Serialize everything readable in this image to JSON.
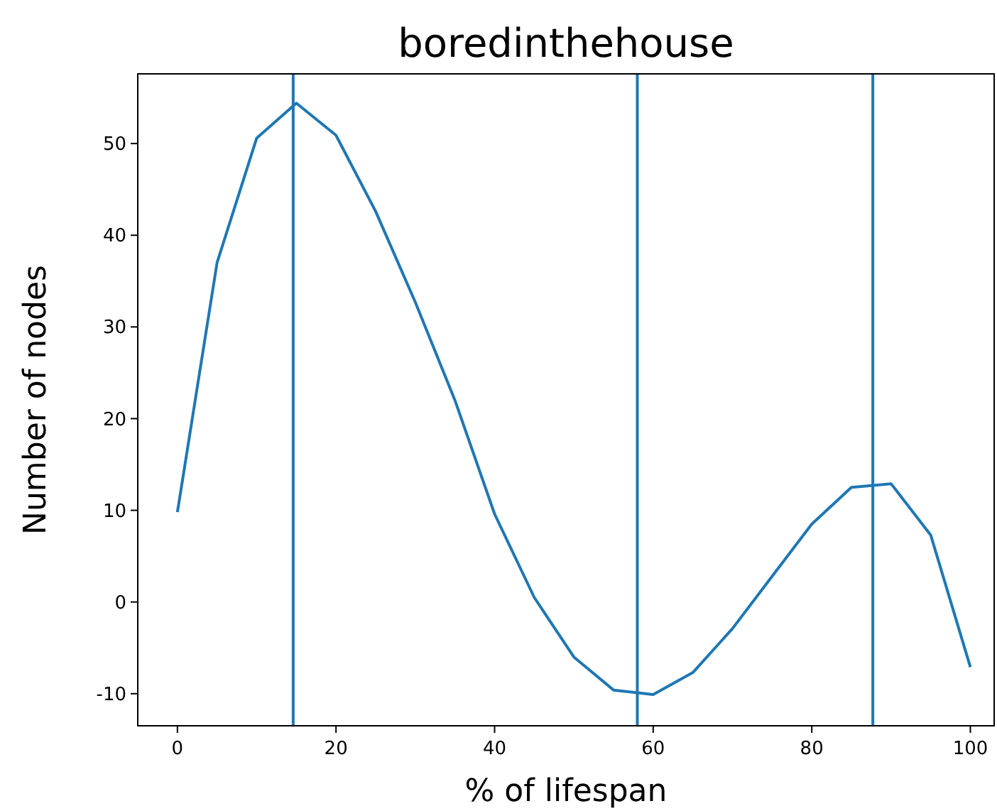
{
  "chart_data": {
    "type": "line",
    "title": "boredinthehouse",
    "xlabel": "% of lifespan",
    "ylabel": "Number of nodes",
    "x": [
      0,
      5,
      10,
      15,
      20,
      25,
      30,
      35,
      40,
      45,
      50,
      55,
      60,
      65,
      70,
      75,
      80,
      85,
      90,
      95,
      100
    ],
    "series": [
      {
        "color": "#1f77b4",
        "values": [
          9.8,
          37,
          50.6,
          54.4,
          50.9,
          42.6,
          32.7,
          22,
          9.6,
          0.5,
          -6,
          -9.6,
          -10.1,
          -7.7,
          -2.9,
          2.8,
          8.5,
          12.5,
          12.9,
          7.3,
          -7.1
        ]
      }
    ],
    "xlim": [
      -5,
      103
    ],
    "ylim": [
      -13.5,
      57.6
    ],
    "xticks": [
      0,
      20,
      40,
      60,
      80,
      100
    ],
    "yticks": [
      -10,
      0,
      10,
      20,
      30,
      40,
      50
    ],
    "ref_lines": [
      {
        "axis": "x",
        "value": 14.6,
        "color": "#1f77b4"
      },
      {
        "axis": "x",
        "value": 58,
        "color": "#1f77b4"
      },
      {
        "axis": "x",
        "value": 87.7,
        "color": "#1f77b4"
      }
    ],
    "grid": false
  }
}
